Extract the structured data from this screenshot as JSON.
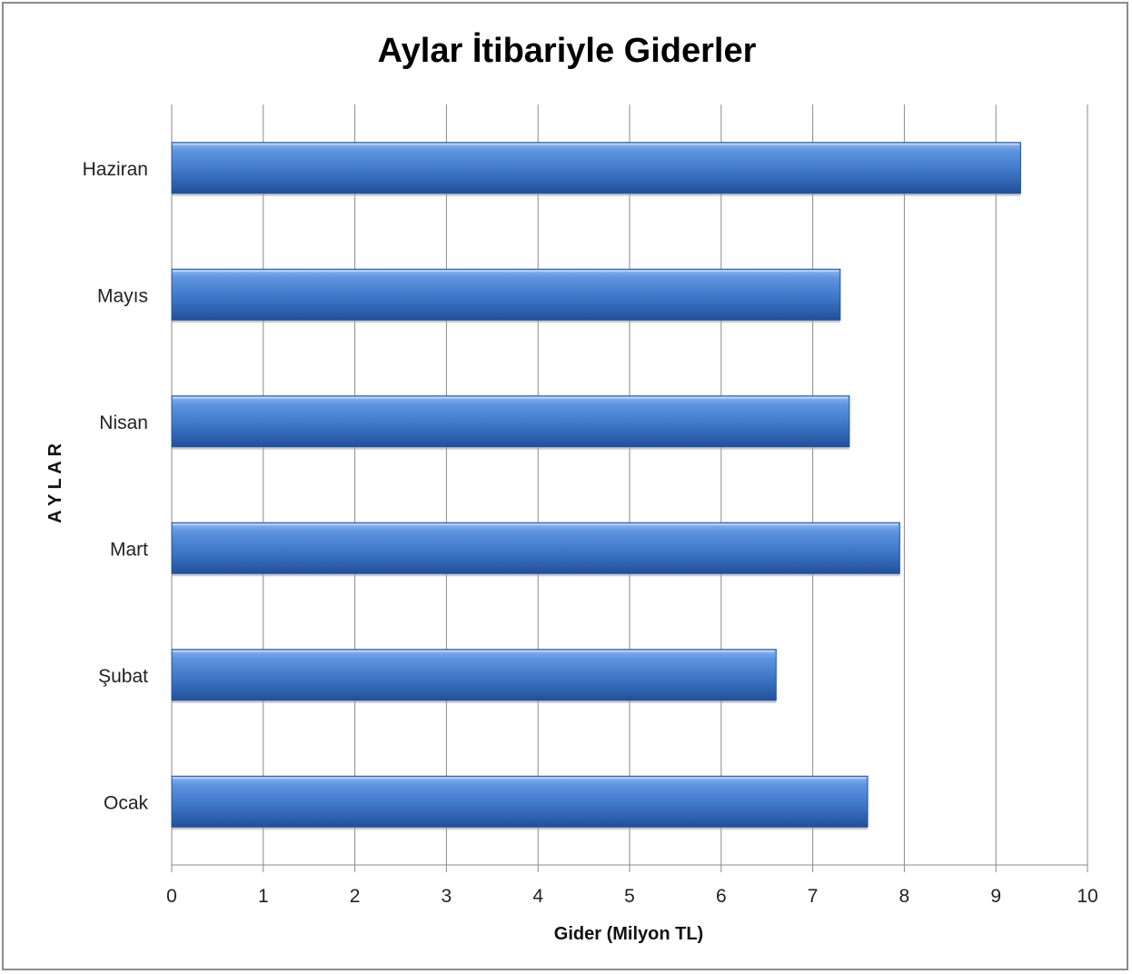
{
  "chart_data": {
    "type": "bar",
    "orientation": "horizontal",
    "title": "Aylar İtibariyle Giderler",
    "xlabel": "Gider (Milyon TL)",
    "ylabel": "A Y L A R",
    "categories": [
      "Ocak",
      "Şubat",
      "Mart",
      "Nisan",
      "Mayıs",
      "Haziran"
    ],
    "values": [
      7.6,
      6.6,
      7.95,
      7.4,
      7.3,
      9.27
    ],
    "xlim": [
      0,
      10
    ],
    "xticks": [
      "0",
      "1",
      "2",
      "3",
      "4",
      "5",
      "6",
      "7",
      "8",
      "9",
      "10"
    ],
    "grid": "vertical",
    "legend": "none",
    "colors": {
      "bar": "#3f78c9",
      "bar_light": "#7eaae8",
      "bar_dark": "#22509a",
      "grid": "#8a8a8a"
    }
  }
}
